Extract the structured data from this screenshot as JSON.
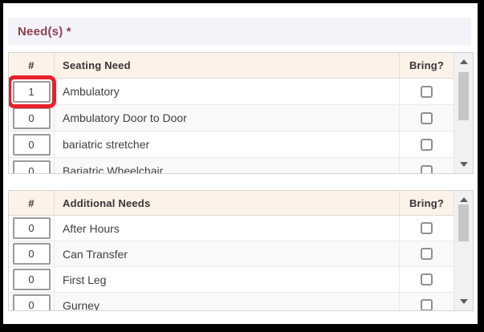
{
  "page": {
    "heading": "Need(s) *"
  },
  "tables": [
    {
      "id": "seating",
      "columns": {
        "num": "#",
        "name": "Seating Need",
        "bring": "Bring?"
      },
      "rows": [
        {
          "count": "1",
          "label": "Ambulatory",
          "checked": false,
          "highlighted": true
        },
        {
          "count": "0",
          "label": "Ambulatory Door to Door",
          "checked": false,
          "highlighted": false
        },
        {
          "count": "0",
          "label": "bariatric stretcher",
          "checked": false,
          "highlighted": false
        },
        {
          "count": "0",
          "label": "Bariatric Wheelchair",
          "checked": false,
          "highlighted": false
        }
      ]
    },
    {
      "id": "additional",
      "columns": {
        "num": "#",
        "name": "Additional Needs",
        "bring": "Bring?"
      },
      "rows": [
        {
          "count": "0",
          "label": "After Hours",
          "checked": false,
          "highlighted": false
        },
        {
          "count": "0",
          "label": "Can Transfer",
          "checked": false,
          "highlighted": false
        },
        {
          "count": "0",
          "label": "First Leg",
          "checked": false,
          "highlighted": false
        },
        {
          "count": "0",
          "label": "Gurney",
          "checked": false,
          "highlighted": false
        }
      ]
    }
  ],
  "colors": {
    "heading_text": "#8a4252",
    "heading_band_bg": "#f4f3f9",
    "table_header_bg": "#fcf2e8",
    "table_header_text": "#3a3237",
    "highlight_annotation": "#e8202c"
  }
}
